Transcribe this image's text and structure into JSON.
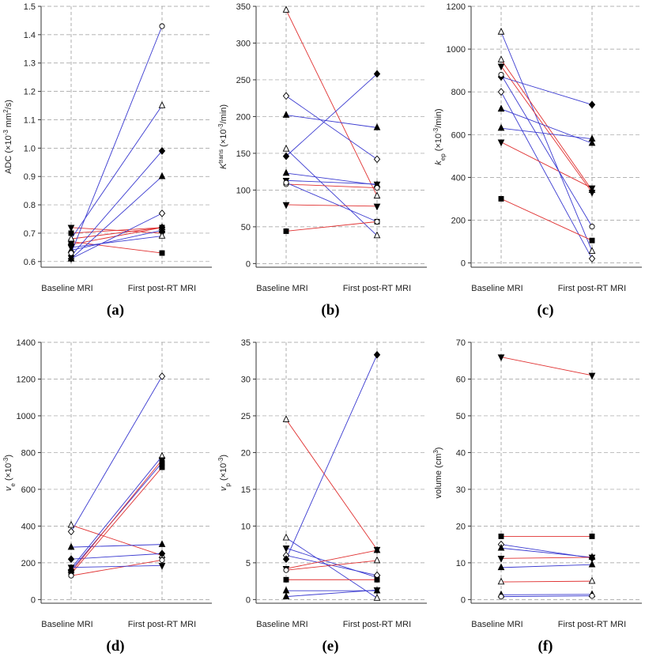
{
  "colors": {
    "red": "#e03030",
    "blue": "#3a3ad0",
    "grid": "#9a9a9a",
    "axis": "#333333"
  },
  "chart_data": [
    {
      "type": "line",
      "panel_label": "(a)",
      "ylabel_html": "ADC (×10<tspan baseline-shift='super' font-size='8'>-3</tspan> mm<tspan baseline-shift='super' font-size='8'>2</tspan>/s)",
      "ylabel": "ADC (×10-3 mm2/s)",
      "categories": [
        "Baseline MRI",
        "First post-RT MRI"
      ],
      "ylim": [
        0.58,
        1.5
      ],
      "ticks": [
        0.6,
        0.7,
        0.8,
        0.9,
        1.0,
        1.1,
        1.2,
        1.3,
        1.4,
        1.5
      ],
      "tick_labels": [
        "0.6",
        "0.7",
        "0.8",
        "0.9",
        "1.0",
        "1.1",
        "1.2",
        "1.3",
        "1.4",
        "1.5"
      ],
      "series": [
        {
          "values": [
            0.72,
            0.7
          ],
          "line": "red",
          "m1": "triDownFilled",
          "m2": "triDownFilled"
        },
        {
          "values": [
            0.7,
            0.72
          ],
          "line": "red",
          "m1": "squareFilled",
          "m2": "squareFilled"
        },
        {
          "values": [
            0.68,
            0.72
          ],
          "line": "red",
          "m1": "triOpen",
          "m2": "triOpen"
        },
        {
          "values": [
            0.67,
            0.63
          ],
          "line": "red",
          "m1": "squareFilled",
          "m2": "squareFilled"
        },
        {
          "values": [
            0.66,
            0.72
          ],
          "line": "red",
          "m1": "diamondFilled",
          "m2": "diamondFilled"
        },
        {
          "values": [
            0.65,
            0.69
          ],
          "line": "blue",
          "m1": "triDownFilled",
          "m2": "triOpen"
        },
        {
          "values": [
            0.64,
            0.71
          ],
          "line": "blue",
          "m1": "triFilled",
          "m2": "triFilled"
        },
        {
          "values": [
            0.62,
            0.99
          ],
          "line": "blue",
          "m1": "diamondFilled",
          "m2": "diamondFilled"
        },
        {
          "values": [
            0.61,
            0.77
          ],
          "line": "blue",
          "m1": "diamondOpen",
          "m2": "diamondOpen"
        },
        {
          "values": [
            0.61,
            0.9
          ],
          "line": "blue",
          "m1": "triFilled",
          "m2": "triFilled"
        },
        {
          "values": [
            0.68,
            1.15
          ],
          "line": "blue",
          "m1": "triOpen",
          "m2": "triOpen"
        },
        {
          "values": [
            0.63,
            1.43
          ],
          "line": "blue",
          "m1": "circleOpen",
          "m2": "circleOpen"
        }
      ]
    },
    {
      "type": "line",
      "panel_label": "(b)",
      "ylabel_html": "<tspan font-style='italic'>K</tspan><tspan baseline-shift='super' font-size='8'>trans</tspan> (×10<tspan baseline-shift='super' font-size='8'>-3</tspan>/min)",
      "ylabel": "Ktrans (×10-3/min)",
      "categories": [
        "Baseline MRI",
        "First post-RT MRI"
      ],
      "ylim": [
        -5,
        350
      ],
      "ticks": [
        0,
        50,
        100,
        150,
        200,
        250,
        300,
        350
      ],
      "tick_labels": [
        "0",
        "50",
        "100",
        "150",
        "200",
        "250",
        "300",
        "350"
      ],
      "series": [
        {
          "values": [
            345,
            92
          ],
          "line": "red",
          "m1": "triOpen",
          "m2": "triOpen"
        },
        {
          "values": [
            228,
            142
          ],
          "line": "blue",
          "m1": "diamondOpen",
          "m2": "diamondOpen"
        },
        {
          "values": [
            202,
            185
          ],
          "line": "blue",
          "m1": "triFilled",
          "m2": "triFilled"
        },
        {
          "values": [
            156,
            38
          ],
          "line": "blue",
          "m1": "triOpen",
          "m2": "triOpen"
        },
        {
          "values": [
            146,
            258
          ],
          "line": "blue",
          "m1": "diamondFilled",
          "m2": "diamondFilled"
        },
        {
          "values": [
            123,
            107
          ],
          "line": "blue",
          "m1": "triFilled",
          "m2": "triFilled"
        },
        {
          "values": [
            113,
            108
          ],
          "line": "blue",
          "m1": "triDownFilled",
          "m2": "triDownFilled"
        },
        {
          "values": [
            108,
            103
          ],
          "line": "red",
          "m1": "circleOpen",
          "m2": "circleOpen"
        },
        {
          "values": [
            80,
            78
          ],
          "line": "red",
          "m1": "triDownFilled",
          "m2": "triDownFilled"
        },
        {
          "values": [
            44,
            57
          ],
          "line": "red",
          "m1": "squareFilled",
          "m2": "squareFilled"
        },
        {
          "values": [
            110,
            57
          ],
          "line": "blue",
          "m1": "circleOpen",
          "m2": "circleOpen"
        }
      ]
    },
    {
      "type": "line",
      "panel_label": "(c)",
      "ylabel_html": "<tspan font-style='italic'>k</tspan><tspan baseline-shift='sub' font-size='8'>ep</tspan> (×10<tspan baseline-shift='super' font-size='8'>-3</tspan>/min)",
      "ylabel": "kep (×10-3/min)",
      "categories": [
        "Baseline MRI",
        "First post-RT MRI"
      ],
      "ylim": [
        -20,
        1200
      ],
      "ticks": [
        0,
        200,
        400,
        600,
        800,
        1000,
        1200
      ],
      "tick_labels": [
        "0",
        "200",
        "400",
        "600",
        "800",
        "1000",
        "1200"
      ],
      "series": [
        {
          "values": [
            1080,
            55
          ],
          "line": "blue",
          "m1": "triOpen",
          "m2": "triOpen"
        },
        {
          "values": [
            950,
            340
          ],
          "line": "red",
          "m1": "triOpen",
          "m2": "triOpen"
        },
        {
          "values": [
            920,
            330
          ],
          "line": "red",
          "m1": "triDownFilled",
          "m2": "triDownFilled"
        },
        {
          "values": [
            870,
            740
          ],
          "line": "blue",
          "m1": "diamondFilled",
          "m2": "diamondFilled"
        },
        {
          "values": [
            800,
            20
          ],
          "line": "blue",
          "m1": "diamondOpen",
          "m2": "diamondOpen"
        },
        {
          "values": [
            720,
            560
          ],
          "line": "blue",
          "m1": "triFilled",
          "m2": "triFilled"
        },
        {
          "values": [
            630,
            580
          ],
          "line": "blue",
          "m1": "triFilled",
          "m2": "triFilled"
        },
        {
          "values": [
            565,
            350
          ],
          "line": "red",
          "m1": "triDownFilled",
          "m2": "triDownFilled"
        },
        {
          "values": [
            300,
            105
          ],
          "line": "red",
          "m1": "squareFilled",
          "m2": "squareFilled"
        },
        {
          "values": [
            880,
            170
          ],
          "line": "blue",
          "m1": "circleOpen",
          "m2": "circleOpen"
        }
      ]
    },
    {
      "type": "line",
      "panel_label": "(d)",
      "ylabel_html": "<tspan font-style='italic'>v</tspan><tspan baseline-shift='sub' font-size='8'>e</tspan> (×10<tspan baseline-shift='super' font-size='8'>-3</tspan>)",
      "ylabel": "ve (×10-3)",
      "categories": [
        "Baseline MRI",
        "First post-RT MRI"
      ],
      "ylim": [
        -20,
        1400
      ],
      "ticks": [
        0,
        200,
        400,
        600,
        800,
        1000,
        1200,
        1400
      ],
      "tick_labels": [
        "0",
        "200",
        "400",
        "600",
        "800",
        "1000",
        "1200",
        "1400"
      ],
      "series": [
        {
          "values": [
            405,
            240
          ],
          "line": "red",
          "m1": "triOpen",
          "m2": "triOpen"
        },
        {
          "values": [
            370,
            1215
          ],
          "line": "blue",
          "m1": "diamondOpen",
          "m2": "diamondOpen"
        },
        {
          "values": [
            285,
            300
          ],
          "line": "blue",
          "m1": "triFilled",
          "m2": "triFilled"
        },
        {
          "values": [
            220,
            250
          ],
          "line": "blue",
          "m1": "diamondFilled",
          "m2": "diamondFilled"
        },
        {
          "values": [
            170,
            780
          ],
          "line": "blue",
          "m1": "triOpen",
          "m2": "triOpen"
        },
        {
          "values": [
            160,
            745
          ],
          "line": "blue",
          "m1": "triFilled",
          "m2": "squareFilled"
        },
        {
          "values": [
            150,
            760
          ],
          "line": "red",
          "m1": "triDownFilled",
          "m2": "triDownFilled"
        },
        {
          "values": [
            140,
            720
          ],
          "line": "red",
          "m1": "squareFilled",
          "m2": "squareFilled"
        },
        {
          "values": [
            130,
            215
          ],
          "line": "red",
          "m1": "circleOpen",
          "m2": "circleOpen"
        },
        {
          "values": [
            175,
            185
          ],
          "line": "blue",
          "m1": "triDownFilled",
          "m2": "triDownFilled"
        }
      ]
    },
    {
      "type": "line",
      "panel_label": "(e)",
      "ylabel_html": "<tspan font-style='italic'>v</tspan><tspan baseline-shift='sub' font-size='8'>p</tspan> (×10<tspan baseline-shift='super' font-size='8'>-3</tspan>)",
      "ylabel": "vp (×10-3)",
      "categories": [
        "Baseline MRI",
        "First post-RT MRI"
      ],
      "ylim": [
        -0.5,
        35
      ],
      "ticks": [
        0,
        5,
        10,
        15,
        20,
        25,
        30,
        35
      ],
      "tick_labels": [
        "0",
        "5",
        "10",
        "15",
        "20",
        "25",
        "30",
        "35"
      ],
      "series": [
        {
          "values": [
            24.5,
            6.8
          ],
          "line": "red",
          "m1": "triOpen",
          "m2": "triDownFilled"
        },
        {
          "values": [
            8.4,
            0.2
          ],
          "line": "blue",
          "m1": "triOpen",
          "m2": "triOpen"
        },
        {
          "values": [
            7.0,
            3.0
          ],
          "line": "blue",
          "m1": "triDownFilled",
          "m2": "triDownFilled"
        },
        {
          "values": [
            6.0,
            3.3
          ],
          "line": "blue",
          "m1": "diamondOpen",
          "m2": "diamondOpen"
        },
        {
          "values": [
            5.5,
            33.3
          ],
          "line": "blue",
          "m1": "diamondFilled",
          "m2": "diamondFilled"
        },
        {
          "values": [
            4.2,
            6.7
          ],
          "line": "red",
          "m1": "triDownFilled",
          "m2": "triFilled"
        },
        {
          "values": [
            4.0,
            5.3
          ],
          "line": "red",
          "m1": "circleOpen",
          "m2": "triOpen"
        },
        {
          "values": [
            2.7,
            2.7
          ],
          "line": "red",
          "m1": "squareFilled",
          "m2": "squareFilled"
        },
        {
          "values": [
            1.2,
            1.2
          ],
          "line": "blue",
          "m1": "triFilled",
          "m2": "triFilled"
        },
        {
          "values": [
            0.4,
            1.3
          ],
          "line": "blue",
          "m1": "triFilled",
          "m2": "triDownFilled"
        }
      ]
    },
    {
      "type": "line",
      "panel_label": "(f)",
      "ylabel_html": "volume (cm<tspan baseline-shift='super' font-size='8'>3</tspan>)",
      "ylabel": "volume (cm3)",
      "categories": [
        "Baseline MRI",
        "First post-RT MRI"
      ],
      "ylim": [
        -1,
        70
      ],
      "ticks": [
        0,
        10,
        20,
        30,
        40,
        50,
        60,
        70
      ],
      "tick_labels": [
        "0",
        "10",
        "20",
        "30",
        "40",
        "50",
        "60",
        "70"
      ],
      "series": [
        {
          "values": [
            66,
            61
          ],
          "line": "red",
          "m1": "triDownFilled",
          "m2": "triDownFilled"
        },
        {
          "values": [
            17.2,
            17.2
          ],
          "line": "red",
          "m1": "squareFilled",
          "m2": "squareFilled"
        },
        {
          "values": [
            15.0,
            11.3
          ],
          "line": "blue",
          "m1": "diamondOpen",
          "m2": "diamondOpen"
        },
        {
          "values": [
            14.0,
            11.5
          ],
          "line": "blue",
          "m1": "triFilled",
          "m2": "triFilled"
        },
        {
          "values": [
            11.2,
            11.5
          ],
          "line": "red",
          "m1": "triDownFilled",
          "m2": "triDownFilled"
        },
        {
          "values": [
            8.7,
            9.5
          ],
          "line": "blue",
          "m1": "triFilled",
          "m2": "triFilled"
        },
        {
          "values": [
            4.8,
            5.0
          ],
          "line": "red",
          "m1": "triOpen",
          "m2": "triOpen"
        },
        {
          "values": [
            1.3,
            1.4
          ],
          "line": "blue",
          "m1": "triFilled",
          "m2": "triFilled"
        },
        {
          "values": [
            0.8,
            1.0
          ],
          "line": "blue",
          "m1": "circleOpen",
          "m2": "circleOpen"
        }
      ]
    }
  ]
}
